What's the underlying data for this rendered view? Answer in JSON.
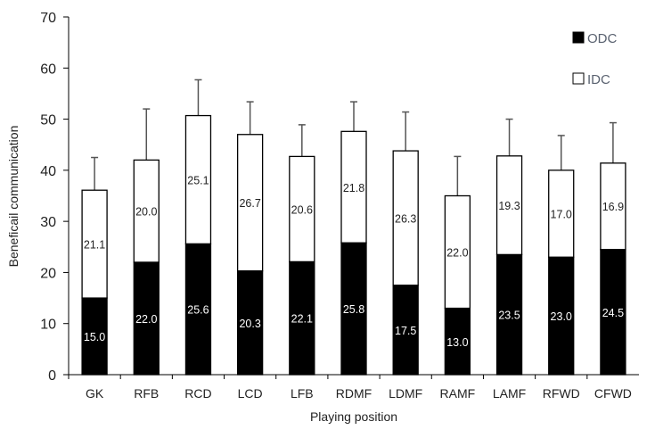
{
  "chart_data": {
    "type": "bar",
    "stacked": true,
    "title": "",
    "xlabel": "Playing position",
    "ylabel": "Beneficail communication",
    "ylim": [
      0,
      70
    ],
    "yticks": [
      0,
      10,
      20,
      30,
      40,
      50,
      60,
      70
    ],
    "grid": false,
    "legend_position": "top-right",
    "categories": [
      "GK",
      "RFB",
      "RCD",
      "LCD",
      "LFB",
      "RDMF",
      "LDMF",
      "RAMF",
      "LAMF",
      "RFWD",
      "CFWD"
    ],
    "series": [
      {
        "name": "ODC",
        "color": "#000000",
        "values": [
          15.0,
          22.0,
          25.6,
          20.3,
          22.1,
          25.8,
          17.5,
          13.0,
          23.5,
          23.0,
          24.5
        ],
        "labels": [
          "15.0",
          "22.0",
          "25.6",
          "20.3",
          "22.1",
          "25.8",
          "17.5",
          "13.0",
          "23.5",
          "23.0",
          "24.5"
        ]
      },
      {
        "name": "IDC",
        "color": "#ffffff",
        "values": [
          21.1,
          20.0,
          25.1,
          26.7,
          20.6,
          21.8,
          26.3,
          22.0,
          19.3,
          17.0,
          16.9
        ],
        "labels": [
          "21.1",
          "20.0",
          "25.1",
          "26.7",
          "20.6",
          "21.8",
          "26.3",
          "22.0",
          "19.3",
          "17.0",
          "16.9"
        ]
      }
    ],
    "error_upper": [
      42.5,
      52.0,
      57.7,
      53.4,
      48.9,
      53.4,
      51.4,
      42.7,
      50.0,
      46.8,
      49.3
    ]
  }
}
